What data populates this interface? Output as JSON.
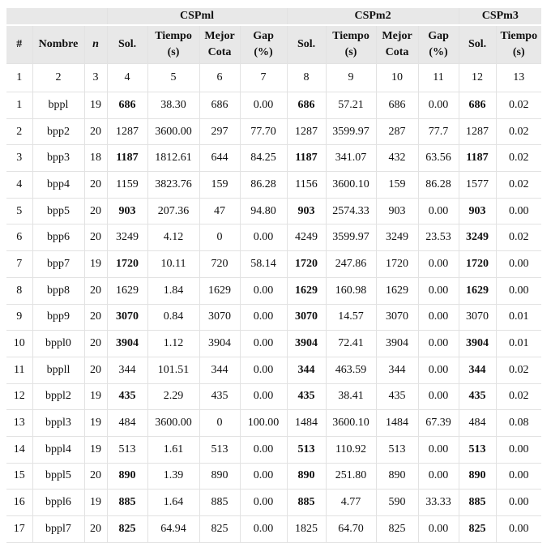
{
  "table": {
    "groups": [
      {
        "label": "CSPml",
        "span": 4
      },
      {
        "label": "CSPm2",
        "span": 4
      },
      {
        "label": "CSPm3",
        "span": 2
      }
    ],
    "header": [
      [
        "#"
      ],
      [
        "Nombre"
      ],
      [
        "n"
      ],
      [
        "Sol."
      ],
      [
        "Tiempo",
        "(s)"
      ],
      [
        "Mejor",
        "Cota"
      ],
      [
        "Gap",
        "(%)"
      ],
      [
        "Sol."
      ],
      [
        "Tiempo",
        "(s)"
      ],
      [
        "Mejor",
        "Cota"
      ],
      [
        "Gap",
        "(%)"
      ],
      [
        "Sol."
      ],
      [
        "Tiempo",
        "(s)"
      ]
    ],
    "numbers": [
      "1",
      "2",
      "3",
      "4",
      "5",
      "6",
      "7",
      "8",
      "9",
      "10",
      "11",
      "12",
      "13"
    ],
    "bold_columns": [
      3,
      7,
      11
    ],
    "rows": [
      {
        "cells": [
          "1",
          "bppl",
          "19",
          "686",
          "38.30",
          "686",
          "0.00",
          "686",
          "57.21",
          "686",
          "0.00",
          "686",
          "0.02"
        ],
        "bold": [
          3,
          7,
          11
        ]
      },
      {
        "cells": [
          "2",
          "bpp2",
          "20",
          "1287",
          "3600.00",
          "297",
          "77.70",
          "1287",
          "3599.97",
          "287",
          "77.7",
          "1287",
          "0.02"
        ],
        "bold": []
      },
      {
        "cells": [
          "3",
          "bpp3",
          "18",
          "1187",
          "1812.61",
          "644",
          "84.25",
          "1187",
          "341.07",
          "432",
          "63.56",
          "1187",
          "0.02"
        ],
        "bold": [
          3,
          7,
          11
        ]
      },
      {
        "cells": [
          "4",
          "bpp4",
          "20",
          "1159",
          "3823.76",
          "159",
          "86.28",
          "1156",
          "3600.10",
          "159",
          "86.28",
          "1577",
          "0.02"
        ],
        "bold": []
      },
      {
        "cells": [
          "5",
          "bpp5",
          "20",
          "903",
          "207.36",
          "47",
          "94.80",
          "903",
          "2574.33",
          "903",
          "0.00",
          "903",
          "0.00"
        ],
        "bold": [
          3,
          7,
          11
        ]
      },
      {
        "cells": [
          "6",
          "bpp6",
          "20",
          "3249",
          "4.12",
          "0",
          "0.00",
          "4249",
          "3599.97",
          "3249",
          "23.53",
          "3249",
          "0.02"
        ],
        "bold": [
          11
        ]
      },
      {
        "cells": [
          "7",
          "bpp7",
          "19",
          "1720",
          "10.11",
          "720",
          "58.14",
          "1720",
          "247.86",
          "1720",
          "0.00",
          "1720",
          "0.00"
        ],
        "bold": [
          3,
          7,
          11
        ]
      },
      {
        "cells": [
          "8",
          "bpp8",
          "20",
          "1629",
          "1.84",
          "1629",
          "0.00",
          "1629",
          "160.98",
          "1629",
          "0.00",
          "1629",
          "0.00"
        ],
        "bold": [
          7,
          11
        ]
      },
      {
        "cells": [
          "9",
          "bpp9",
          "20",
          "3070",
          "0.84",
          "3070",
          "0.00",
          "3070",
          "14.57",
          "3070",
          "0.00",
          "3070",
          "0.01"
        ],
        "bold": [
          3,
          7
        ]
      },
      {
        "cells": [
          "10",
          "bppl0",
          "20",
          "3904",
          "1.12",
          "3904",
          "0.00",
          "3904",
          "72.41",
          "3904",
          "0.00",
          "3904",
          "0.01"
        ],
        "bold": [
          3,
          7,
          11
        ]
      },
      {
        "cells": [
          "11",
          "bppll",
          "20",
          "344",
          "101.51",
          "344",
          "0.00",
          "344",
          "463.59",
          "344",
          "0.00",
          "344",
          "0.02"
        ],
        "bold": [
          7,
          11
        ]
      },
      {
        "cells": [
          "12",
          "bppl2",
          "19",
          "435",
          "2.29",
          "435",
          "0.00",
          "435",
          "38.41",
          "435",
          "0.00",
          "435",
          "0.02"
        ],
        "bold": [
          3,
          7,
          11
        ]
      },
      {
        "cells": [
          "13",
          "bppl3",
          "19",
          "484",
          "3600.00",
          "0",
          "100.00",
          "1484",
          "3600.10",
          "1484",
          "67.39",
          "484",
          "0.08"
        ],
        "bold": []
      },
      {
        "cells": [
          "14",
          "bppl4",
          "19",
          "513",
          "1.61",
          "513",
          "0.00",
          "513",
          "110.92",
          "513",
          "0.00",
          "513",
          "0.00"
        ],
        "bold": [
          7,
          11
        ]
      },
      {
        "cells": [
          "15",
          "bppl5",
          "20",
          "890",
          "1.39",
          "890",
          "0.00",
          "890",
          "251.80",
          "890",
          "0.00",
          "890",
          "0.00"
        ],
        "bold": [
          3,
          7,
          11
        ]
      },
      {
        "cells": [
          "16",
          "bppl6",
          "19",
          "885",
          "1.64",
          "885",
          "0.00",
          "885",
          "4.77",
          "590",
          "33.33",
          "885",
          "0.00"
        ],
        "bold": [
          3,
          7,
          11
        ]
      },
      {
        "cells": [
          "17",
          "bppl7",
          "20",
          "825",
          "64.94",
          "825",
          "0.00",
          "1825",
          "64.70",
          "825",
          "0.00",
          "825",
          "0.00"
        ],
        "bold": [
          3,
          11
        ]
      }
    ]
  }
}
